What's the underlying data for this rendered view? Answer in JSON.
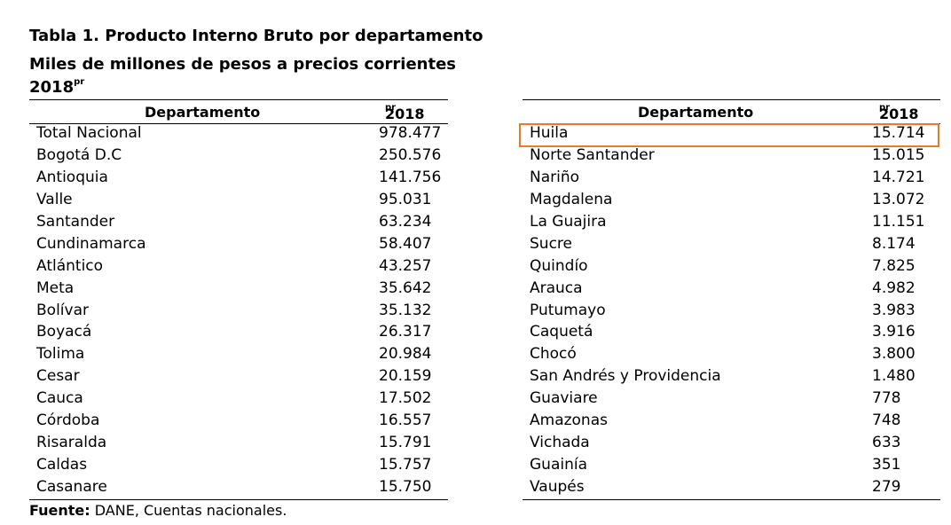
{
  "title": {
    "line1": "Tabla 1. Producto Interno Bruto por departamento",
    "line2": "Miles de millones de pesos a precios corrientes",
    "line3_year": "2018",
    "line3_sup": "pr"
  },
  "table": {
    "col_departamento": "Departamento",
    "col_year": "2018",
    "col_year_sup": "pr"
  },
  "left_rows": [
    {
      "name": "Total Nacional",
      "value": "978.477"
    },
    {
      "name": "Bogotá D.C",
      "value": "250.576"
    },
    {
      "name": "Antioquia",
      "value": "141.756"
    },
    {
      "name": "Valle",
      "value": "95.031"
    },
    {
      "name": "Santander",
      "value": "63.234"
    },
    {
      "name": "Cundinamarca",
      "value": "58.407"
    },
    {
      "name": "Atlántico",
      "value": "43.257"
    },
    {
      "name": "Meta",
      "value": "35.642"
    },
    {
      "name": "Bolívar",
      "value": "35.132"
    },
    {
      "name": "Boyacá",
      "value": "26.317"
    },
    {
      "name": "Tolima",
      "value": "20.984"
    },
    {
      "name": "Cesar",
      "value": "20.159"
    },
    {
      "name": "Cauca",
      "value": "17.502"
    },
    {
      "name": "Córdoba",
      "value": "16.557"
    },
    {
      "name": "Risaralda",
      "value": "15.791"
    },
    {
      "name": "Caldas",
      "value": "15.757"
    },
    {
      "name": "Casanare",
      "value": "15.750"
    }
  ],
  "right_rows": [
    {
      "name": "Huila",
      "value": "15.714"
    },
    {
      "name": "Norte Santander",
      "value": "15.015"
    },
    {
      "name": "Nariño",
      "value": "14.721"
    },
    {
      "name": "Magdalena",
      "value": "13.072"
    },
    {
      "name": "La Guajira",
      "value": "11.151"
    },
    {
      "name": "Sucre",
      "value": "8.174"
    },
    {
      "name": "Quindío",
      "value": "7.825"
    },
    {
      "name": "Arauca",
      "value": "4.982"
    },
    {
      "name": "Putumayo",
      "value": "3.983"
    },
    {
      "name": "Caquetá",
      "value": "3.916"
    },
    {
      "name": "Chocó",
      "value": "3.800"
    },
    {
      "name": "San Andrés y Providencia",
      "value": "1.480"
    },
    {
      "name": "Guaviare",
      "value": "778"
    },
    {
      "name": "Amazonas",
      "value": "748"
    },
    {
      "name": "Vichada",
      "value": "633"
    },
    {
      "name": "Guainía",
      "value": "351"
    },
    {
      "name": "Vaupés",
      "value": "279"
    }
  ],
  "highlight_color": "#e97a2a",
  "source": {
    "label": "Fuente:",
    "text": " DANE, Cuentas nacionales."
  }
}
